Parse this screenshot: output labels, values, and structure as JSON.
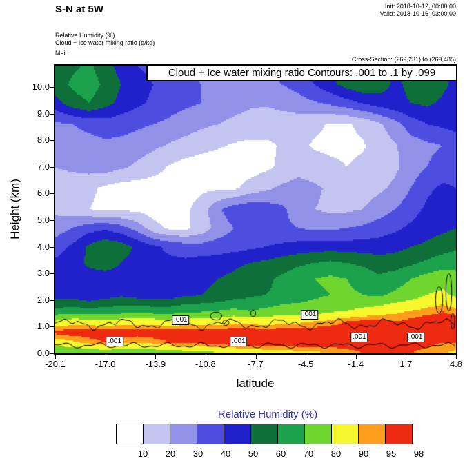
{
  "header": {
    "title": "S-N at 5W",
    "init_label": "Init: 2018-10-12_00:00:00",
    "valid_label": "Valid: 2018-10-16_03:00:00",
    "field_line1": "Relative Humidity   (%)",
    "field_line2": "Cloud + Ice water mixing ratio   (g/kg)",
    "field_line3": "Main",
    "cross_section": "Cross-Section: (269,231) to (269,485)"
  },
  "plot": {
    "inner_title": "Cloud + Ice water mixing ratio Contours: .001 to .1 by .099",
    "xlabel": "latitude",
    "ylabel": "Height (km)",
    "x_ticks": [
      "-20.1",
      "-17.0",
      "-13.9",
      "-10.8",
      "-7.7",
      "-4.5",
      "-1.4",
      "1.7",
      "4.8"
    ],
    "y_ticks": [
      "0.0",
      "1.0",
      "2.0",
      "3.0",
      "4.0",
      "5.0",
      "6.0",
      "7.0",
      "8.0",
      "9.0",
      "10.0"
    ]
  },
  "colorbar": {
    "title": "Relative Humidity  (%)",
    "title_color": "#3434a8",
    "labels": [
      "10",
      "20",
      "30",
      "40",
      "50",
      "60",
      "70",
      "80",
      "90",
      "95",
      "98"
    ]
  },
  "chart_data": {
    "type": "heatmap",
    "title": "Cloud + Ice water mixing ratio Contours: .001 to .1 by .099",
    "xlabel": "latitude",
    "ylabel": "Height (km)",
    "xlim": [
      -20.1,
      4.8
    ],
    "ylim": [
      0,
      10.8
    ],
    "legend": "Relative Humidity (%)",
    "level_edges": [
      10,
      20,
      30,
      40,
      50,
      60,
      70,
      80,
      90,
      95
    ],
    "level_labels": [
      10,
      20,
      30,
      40,
      50,
      60,
      70,
      80,
      90,
      95,
      98
    ],
    "level_colors": [
      "#ffffff",
      "#c4c4f0",
      "#9191e8",
      "#4d4de0",
      "#2121cc",
      "#0e6f39",
      "#1ca24c",
      "#6fd62f",
      "#f7f72e",
      "#ff9d1c",
      "#ee2a10"
    ],
    "lats": [
      -20.1,
      -19,
      -18,
      -17,
      -16,
      -15,
      -14,
      -13,
      -12,
      -11,
      -10,
      -9,
      -8,
      -7,
      -6,
      -5,
      -4,
      -3,
      -2,
      -1,
      0,
      1,
      2,
      3,
      4,
      4.8
    ],
    "heights_km": [
      0,
      0.4,
      0.8,
      1.2,
      1.6,
      2.2,
      2.8,
      3.4,
      4.0,
      4.7,
      5.4,
      6.2,
      7.0,
      7.8,
      8.6,
      9.4,
      10.1,
      10.8
    ],
    "rh_grid": [
      [
        68,
        68,
        70,
        72,
        70,
        70,
        72,
        72,
        75,
        75,
        78,
        80,
        82,
        85,
        85,
        88,
        88,
        90,
        92,
        95,
        97,
        97,
        95,
        92,
        90,
        88
      ],
      [
        85,
        88,
        92,
        95,
        92,
        90,
        92,
        95,
        97,
        97,
        99,
        99,
        99,
        99,
        99,
        99,
        99,
        99,
        99,
        99,
        99,
        99,
        99,
        97,
        95,
        95
      ],
      [
        97,
        99,
        99,
        99,
        99,
        99,
        99,
        99,
        99,
        99,
        99,
        99,
        99,
        99,
        99,
        99,
        99,
        99,
        99,
        99,
        99,
        99,
        99,
        99,
        97,
        99
      ],
      [
        82,
        85,
        85,
        82,
        85,
        85,
        85,
        82,
        85,
        85,
        85,
        88,
        88,
        85,
        88,
        88,
        90,
        92,
        95,
        97,
        97,
        95,
        97,
        99,
        97,
        99
      ],
      [
        62,
        65,
        62,
        65,
        65,
        68,
        65,
        65,
        68,
        68,
        70,
        72,
        70,
        72,
        75,
        75,
        75,
        78,
        80,
        82,
        85,
        88,
        90,
        92,
        95,
        92
      ],
      [
        45,
        45,
        42,
        45,
        48,
        45,
        45,
        45,
        48,
        50,
        52,
        55,
        58,
        60,
        62,
        65,
        68,
        70,
        72,
        70,
        68,
        72,
        75,
        80,
        82,
        78
      ],
      [
        44,
        45,
        45,
        44,
        45,
        45,
        44,
        45,
        45,
        48,
        50,
        52,
        55,
        58,
        62,
        66,
        70,
        72,
        70,
        66,
        62,
        65,
        70,
        74,
        76,
        72
      ],
      [
        42,
        46,
        52,
        56,
        50,
        46,
        42,
        42,
        42,
        44,
        45,
        48,
        50,
        52,
        55,
        58,
        60,
        62,
        60,
        58,
        55,
        55,
        58,
        62,
        66,
        68
      ],
      [
        35,
        42,
        52,
        58,
        55,
        48,
        42,
        38,
        35,
        34,
        35,
        36,
        38,
        40,
        42,
        44,
        45,
        46,
        45,
        45,
        45,
        47,
        50,
        52,
        55,
        58
      ],
      [
        25,
        30,
        36,
        38,
        34,
        26,
        14,
        8,
        8,
        14,
        24,
        30,
        34,
        35,
        32,
        30,
        28,
        28,
        30,
        32,
        35,
        38,
        42,
        46,
        48,
        50
      ],
      [
        18,
        14,
        10,
        8,
        8,
        8,
        5,
        5,
        8,
        15,
        28,
        36,
        38,
        36,
        32,
        25,
        20,
        18,
        18,
        20,
        25,
        30,
        36,
        42,
        46,
        46
      ],
      [
        16,
        14,
        12,
        8,
        5,
        5,
        5,
        5,
        5,
        8,
        8,
        8,
        14,
        18,
        22,
        25,
        22,
        18,
        15,
        15,
        18,
        22,
        30,
        38,
        42,
        40
      ],
      [
        20,
        22,
        24,
        25,
        22,
        18,
        14,
        9,
        6,
        5,
        5,
        5,
        5,
        8,
        12,
        15,
        14,
        12,
        10,
        12,
        15,
        18,
        25,
        30,
        34,
        34
      ],
      [
        24,
        25,
        26,
        28,
        27,
        25,
        22,
        19,
        16,
        13,
        11,
        9,
        8,
        8,
        11,
        12,
        9,
        8,
        8,
        9,
        14,
        19,
        25,
        28,
        30,
        32
      ],
      [
        28,
        30,
        33,
        35,
        34,
        32,
        30,
        28,
        25,
        22,
        20,
        17,
        15,
        15,
        15,
        14,
        12,
        9,
        9,
        12,
        18,
        26,
        35,
        40,
        42,
        45
      ],
      [
        46,
        56,
        60,
        54,
        47,
        42,
        38,
        34,
        32,
        30,
        28,
        25,
        22,
        21,
        23,
        26,
        29,
        32,
        36,
        41,
        45,
        48,
        50,
        52,
        48,
        46
      ],
      [
        55,
        62,
        65,
        58,
        50,
        45,
        40,
        35,
        32,
        30,
        28,
        26,
        26,
        27,
        30,
        34,
        40,
        47,
        54,
        58,
        55,
        48,
        52,
        58,
        52,
        47
      ],
      [
        50,
        58,
        62,
        54,
        46,
        40,
        36,
        33,
        30,
        28,
        25,
        23,
        25,
        29,
        34,
        40,
        46,
        53,
        58,
        62,
        57,
        50,
        55,
        60,
        54,
        46
      ]
    ],
    "contour": {
      "value_label": ".001",
      "range_text": ".001 to .1 by .099",
      "label_positions": [
        {
          "lat": -16.4,
          "km": 0.45
        },
        {
          "lat": -12.3,
          "km": 1.25
        },
        {
          "lat": -8.7,
          "km": 0.45
        },
        {
          "lat": -4.3,
          "km": 1.45
        },
        {
          "lat": -1.2,
          "km": 0.6
        },
        {
          "lat": 2.3,
          "km": 0.6
        }
      ]
    }
  }
}
